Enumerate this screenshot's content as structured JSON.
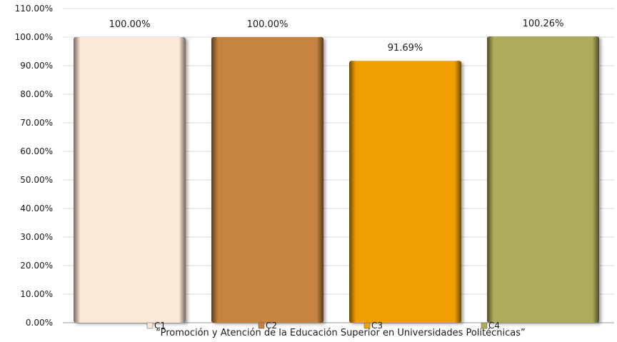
{
  "chart_data": {
    "type": "bar",
    "categories": [
      "C1",
      "C2",
      "C3",
      "C4"
    ],
    "values": [
      100.0,
      100.0,
      91.69,
      100.26
    ],
    "data_labels": [
      "100.00%",
      "100.00%",
      "91.69%",
      "100.26%"
    ],
    "ylim": [
      0,
      110
    ],
    "ytick_values": [
      0,
      10,
      20,
      30,
      40,
      50,
      60,
      70,
      80,
      90,
      100,
      110
    ],
    "ytick_labels": [
      "0.00%",
      "10.00%",
      "20.00%",
      "30.00%",
      "40.00%",
      "50.00%",
      "60.00%",
      "70.00%",
      "80.00%",
      "90.00%",
      "100.00%",
      "110.00%"
    ],
    "grid": true,
    "legend_position": "bottom",
    "legend": [
      "C1",
      "C2",
      "C3",
      "C4"
    ],
    "colors": [
      "#FBE8D6",
      "#C58442",
      "#EFA004",
      "#AEAB5D"
    ],
    "caption": "“Promoción  y Atención de la Educación Superior en Universidades Politécnicas”"
  }
}
